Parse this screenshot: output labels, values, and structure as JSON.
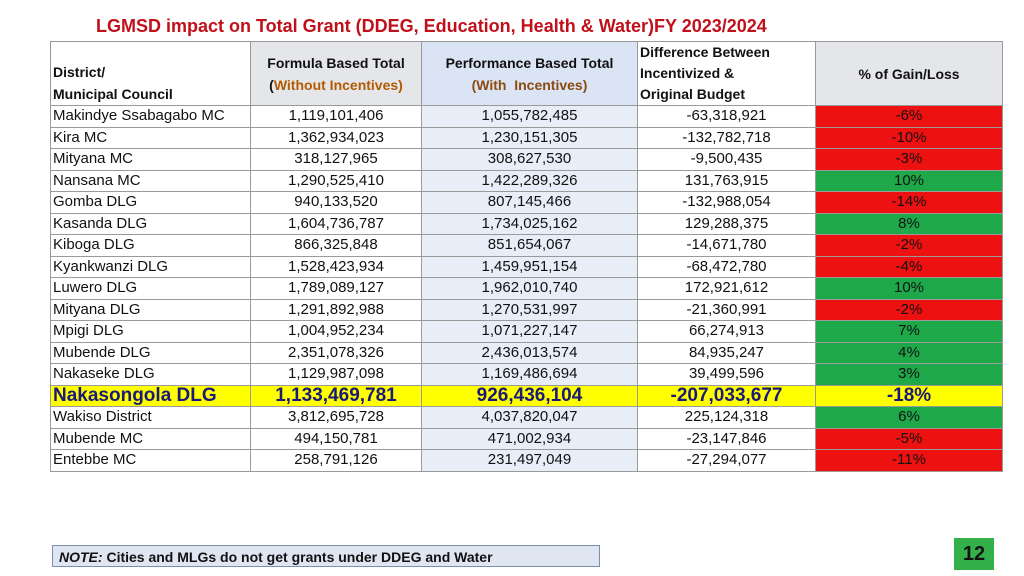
{
  "title": "LGMSD impact on Total Grant (DDEG, Education, Health & Water)FY 2023/2024",
  "colors": {
    "gain": "#1fa84a",
    "loss": "#ee1111",
    "highlight": "#ffff00",
    "title": "#c0101a"
  },
  "headers": {
    "name_line1": "District/",
    "name_line2": "Municipal Council",
    "formula_line1": "Formula Based Total",
    "formula_open": "(",
    "formula_line2": "Without Incentives)",
    "perf_line1": "Performance Based Total",
    "perf_line2": "(With  Incentives)",
    "diff_line1": "Difference Between",
    "diff_line2": "Incentivized &",
    "diff_line3": "Original Budget",
    "pct": "% of Gain/Loss"
  },
  "rows": [
    {
      "name": "Makindye Ssabagabo MC",
      "formula": "1,119,101,406",
      "perf": "1,055,782,485",
      "diff": "-63,318,921",
      "pct": "-6%",
      "status": "loss",
      "highlight": false
    },
    {
      "name": "Kira MC",
      "formula": "1,362,934,023",
      "perf": "1,230,151,305",
      "diff": "-132,782,718",
      "pct": "-10%",
      "status": "loss",
      "highlight": false
    },
    {
      "name": "Mityana MC",
      "formula": "318,127,965",
      "perf": "308,627,530",
      "diff": "-9,500,435",
      "pct": "-3%",
      "status": "loss",
      "highlight": false
    },
    {
      "name": "Nansana MC",
      "formula": "1,290,525,410",
      "perf": "1,422,289,326",
      "diff": "131,763,915",
      "pct": "10%",
      "status": "gain",
      "highlight": false
    },
    {
      "name": "Gomba DLG",
      "formula": "940,133,520",
      "perf": "807,145,466",
      "diff": "-132,988,054",
      "pct": "-14%",
      "status": "loss",
      "highlight": false
    },
    {
      "name": "Kasanda DLG",
      "formula": "1,604,736,787",
      "perf": "1,734,025,162",
      "diff": "129,288,375",
      "pct": "8%",
      "status": "gain",
      "highlight": false
    },
    {
      "name": "Kiboga DLG",
      "formula": "866,325,848",
      "perf": "851,654,067",
      "diff": "-14,671,780",
      "pct": "-2%",
      "status": "loss",
      "highlight": false
    },
    {
      "name": "Kyankwanzi DLG",
      "formula": "1,528,423,934",
      "perf": "1,459,951,154",
      "diff": "-68,472,780",
      "pct": "-4%",
      "status": "loss",
      "highlight": false
    },
    {
      "name": "Luwero DLG",
      "formula": "1,789,089,127",
      "perf": "1,962,010,740",
      "diff": "172,921,612",
      "pct": "10%",
      "status": "gain",
      "highlight": false
    },
    {
      "name": "Mityana DLG",
      "formula": "1,291,892,988",
      "perf": "1,270,531,997",
      "diff": "-21,360,991",
      "pct": "-2%",
      "status": "loss",
      "highlight": false
    },
    {
      "name": "Mpigi DLG",
      "formula": "1,004,952,234",
      "perf": "1,071,227,147",
      "diff": "66,274,913",
      "pct": "7%",
      "status": "gain",
      "highlight": false
    },
    {
      "name": "Mubende DLG",
      "formula": "2,351,078,326",
      "perf": "2,436,013,574",
      "diff": "84,935,247",
      "pct": "4%",
      "status": "gain",
      "highlight": false
    },
    {
      "name": "Nakaseke DLG",
      "formula": "1,129,987,098",
      "perf": "1,169,486,694",
      "diff": "39,499,596",
      "pct": "3%",
      "status": "gain",
      "highlight": false
    },
    {
      "name": "Nakasongola DLG",
      "formula": "1,133,469,781",
      "perf": "926,436,104",
      "diff": "-207,033,677",
      "pct": "-18%",
      "status": "loss",
      "highlight": true
    },
    {
      "name": "Wakiso District",
      "formula": "3,812,695,728",
      "perf": "4,037,820,047",
      "diff": "225,124,318",
      "pct": "6%",
      "status": "gain",
      "highlight": false
    },
    {
      "name": "Mubende MC",
      "formula": "494,150,781",
      "perf": "471,002,934",
      "diff": "-23,147,846",
      "pct": "-5%",
      "status": "loss",
      "highlight": false
    },
    {
      "name": "Entebbe MC",
      "formula": "258,791,126",
      "perf": "231,497,049",
      "diff": "-27,294,077",
      "pct": "-11%",
      "status": "loss",
      "highlight": false
    }
  ],
  "note": {
    "label": "NOTE:",
    "text": " Cities and MLGs do not get grants under DDEG and Water"
  },
  "page_number": "12"
}
